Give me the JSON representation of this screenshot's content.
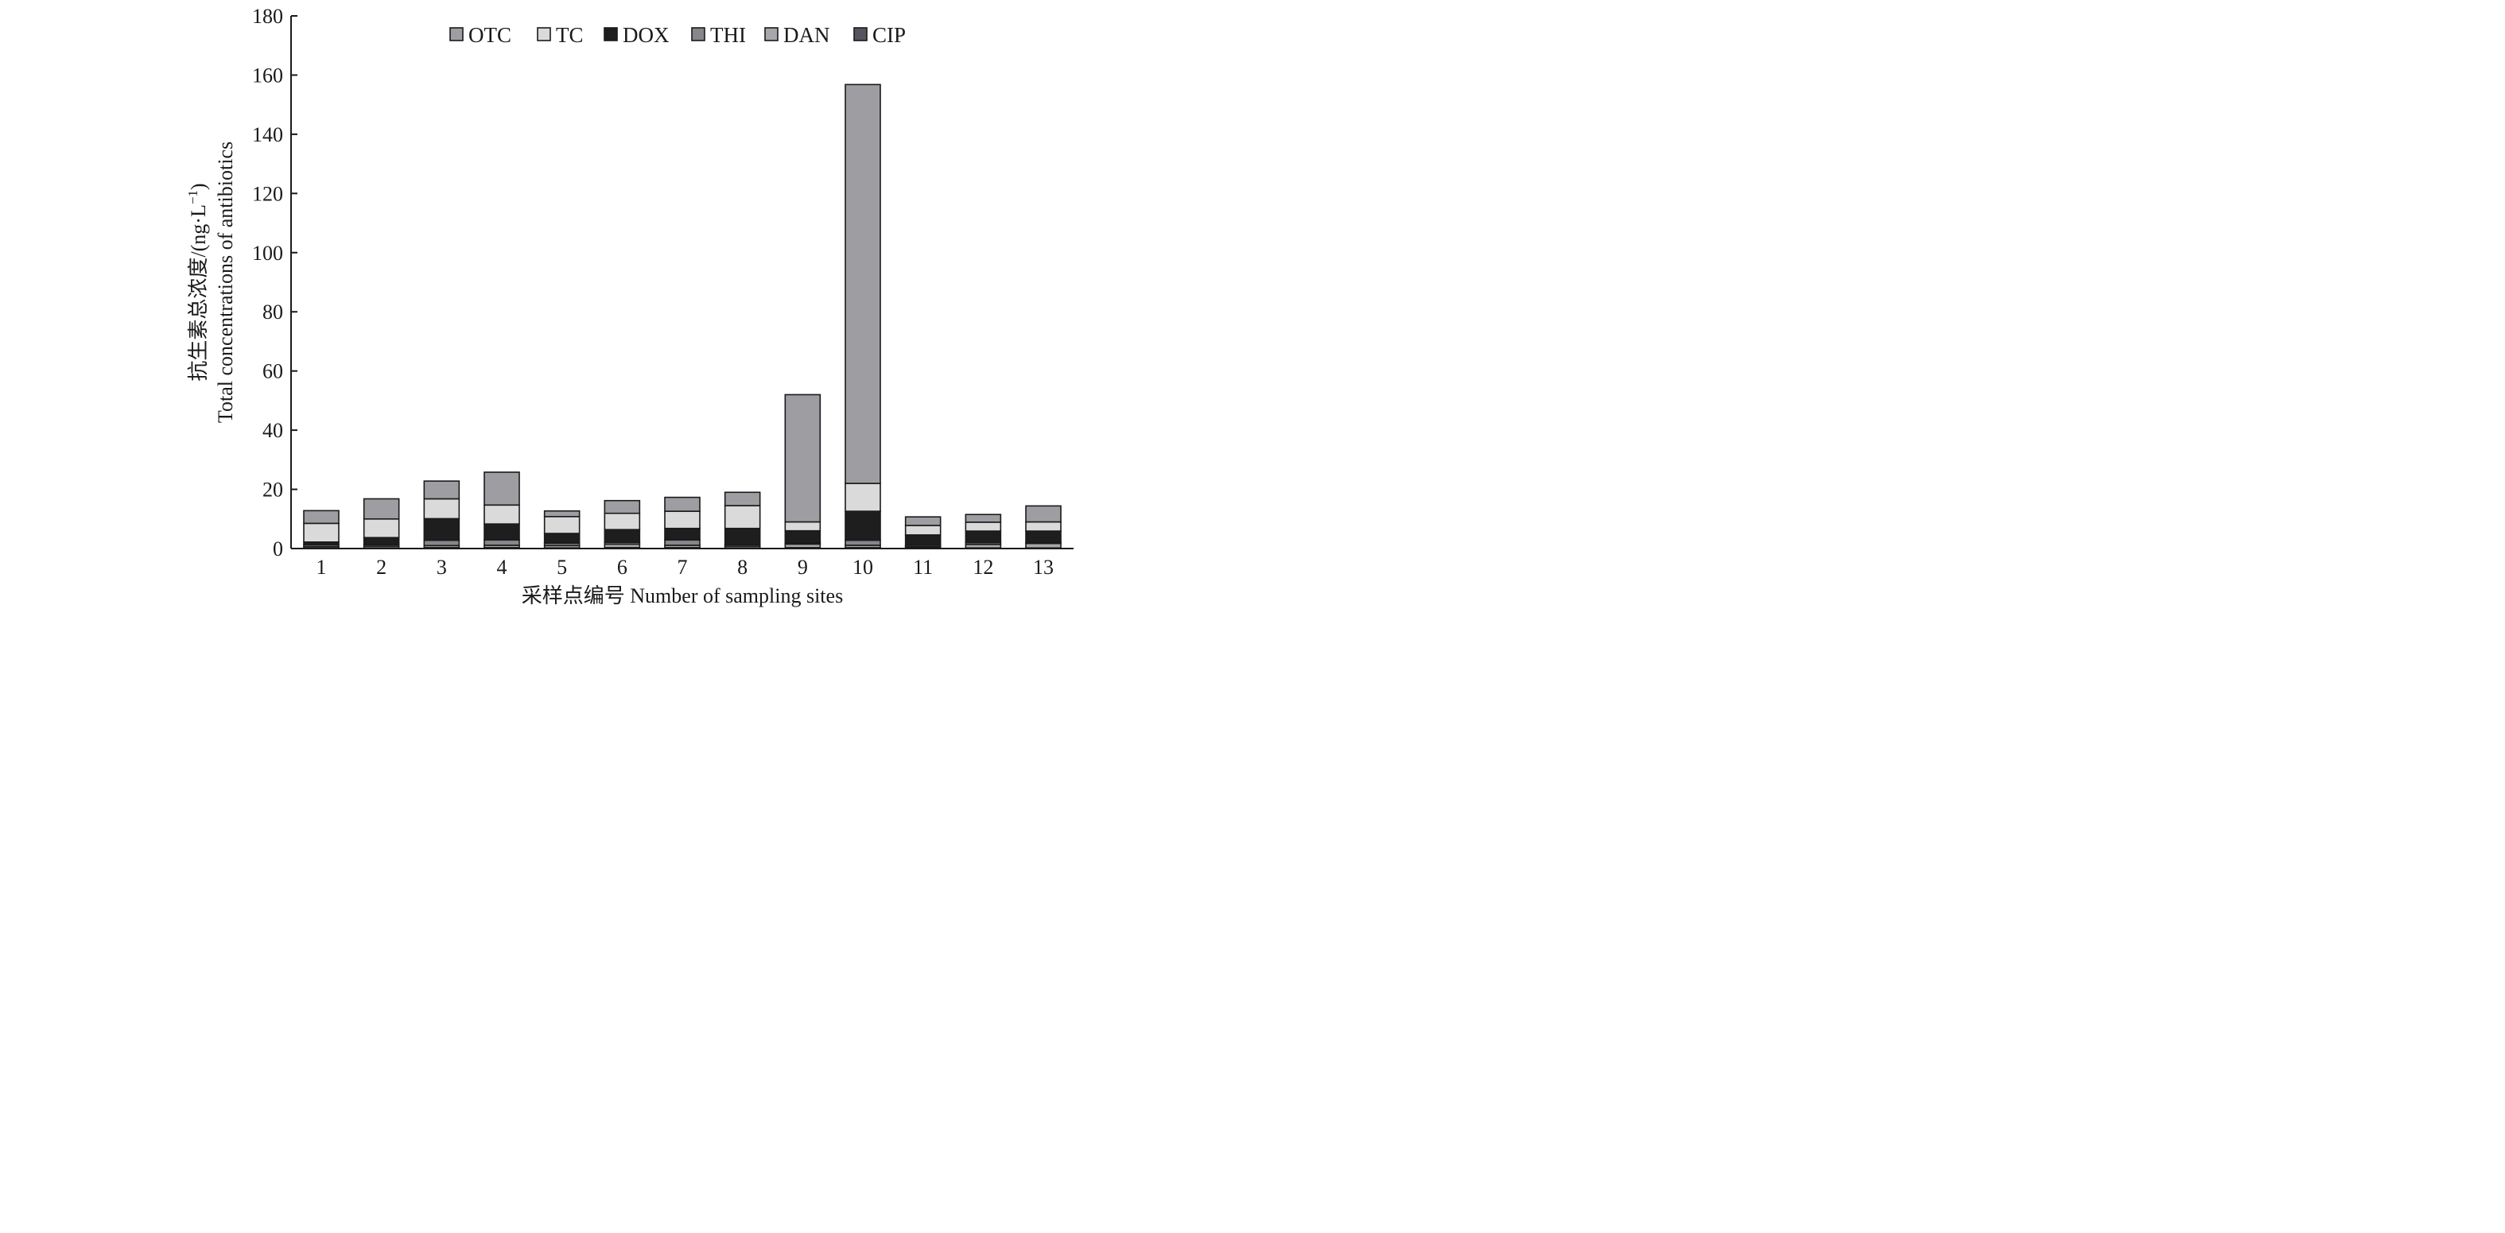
{
  "chart_data": {
    "type": "bar",
    "stacked": true,
    "categories": [
      "1",
      "2",
      "3",
      "4",
      "5",
      "6",
      "7",
      "8",
      "9",
      "10",
      "11",
      "12",
      "13"
    ],
    "series": [
      {
        "name": "CIP",
        "color": "#55555f",
        "values": [
          0.2,
          0.2,
          0.3,
          0.3,
          0.2,
          0.3,
          0.3,
          0.2,
          0.3,
          0.3,
          0.2,
          0.2,
          0.2
        ]
      },
      {
        "name": "DAN",
        "color": "#a8a8ac",
        "values": [
          0.5,
          0.6,
          0.7,
          0.8,
          0.8,
          1.2,
          0.8,
          0.6,
          1.2,
          0.8,
          0.4,
          1.2,
          1.5
        ]
      },
      {
        "name": "THI",
        "color": "#86868b",
        "values": [
          0.6,
          0.5,
          1.8,
          1.8,
          0.8,
          0.6,
          1.8,
          0.5,
          0.4,
          1.7,
          0.5,
          0.6,
          0.3
        ]
      },
      {
        "name": "DOX",
        "color": "#1e1e1e",
        "values": [
          0.9,
          2.4,
          7.3,
          5.4,
          3.3,
          4.3,
          3.9,
          5.5,
          4.1,
          9.8,
          3.5,
          3.9,
          3.9
        ]
      },
      {
        "name": "TC",
        "color": "#dadada",
        "values": [
          6.3,
          6.3,
          6.7,
          6.4,
          5.7,
          5.5,
          5.8,
          7.7,
          3.0,
          9.4,
          3.2,
          3.0,
          3.1
        ]
      },
      {
        "name": "OTC",
        "color": "#9e9ea2",
        "values": [
          4.3,
          6.8,
          6.0,
          11.1,
          1.9,
          4.3,
          4.7,
          4.5,
          43.0,
          134.8,
          2.9,
          2.6,
          5.4
        ]
      }
    ],
    "ylim": [
      0,
      180
    ],
    "yticks": [
      "0",
      "20",
      "40",
      "60",
      "80",
      "100",
      "120",
      "140",
      "160",
      "180"
    ],
    "ylabel_cn": "抗生素总浓度/(ng·L",
    "ylabel_unit_sup": "−1",
    "ylabel_close": ")",
    "ylabel_en": "Total concentrations of antibiotics",
    "xlabel": "采样点编号 Number of sampling sites",
    "legend": {
      "position": "top-center",
      "items": [
        "OTC",
        "TC",
        "DOX",
        "THI",
        "DAN",
        "CIP"
      ],
      "colors": [
        "#9e9ea2",
        "#dadada",
        "#1e1e1e",
        "#86868b",
        "#a8a8ac",
        "#55555f"
      ]
    },
    "grid": false
  }
}
